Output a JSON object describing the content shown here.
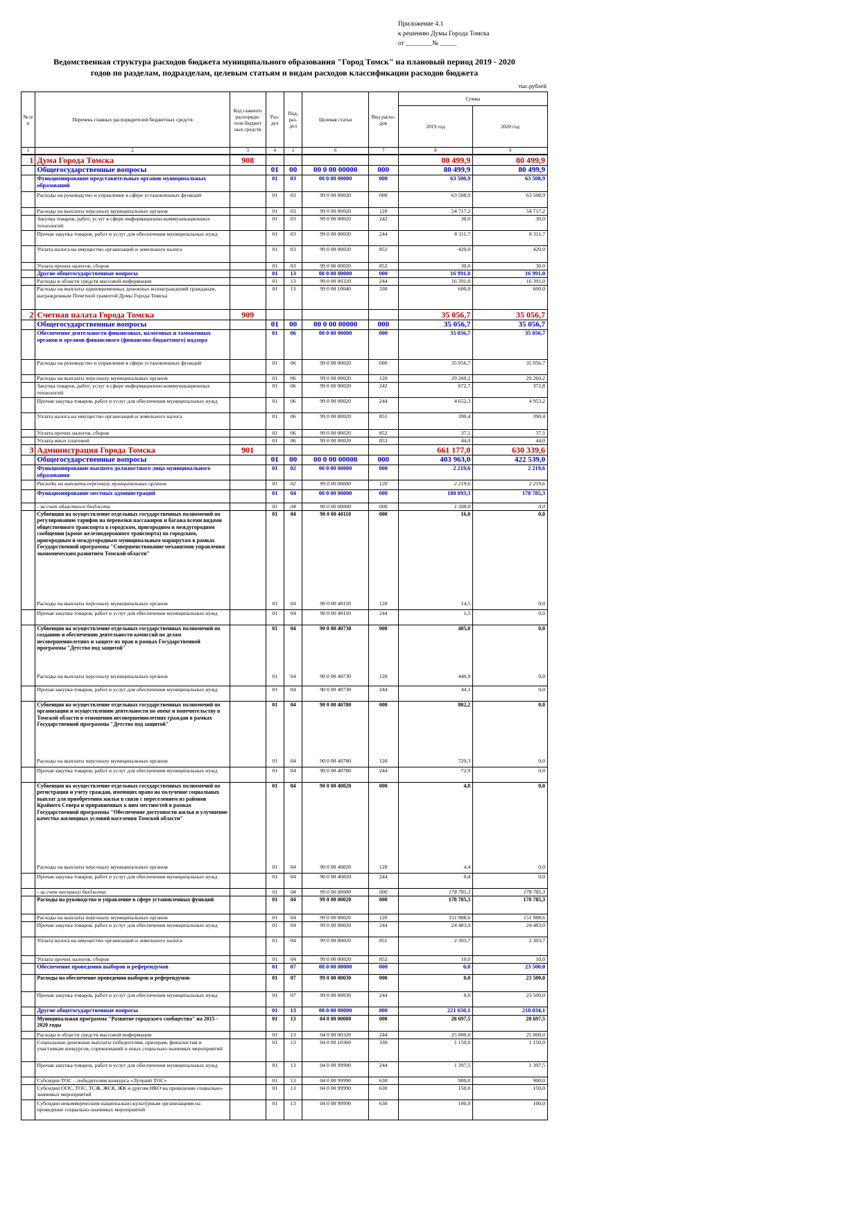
{
  "appendix": {
    "line1": "Приложение 4.1",
    "line2": "к решению Думы Города Томска",
    "line3": "от ________№ _____"
  },
  "title": {
    "line1": "Ведомственная структура расходов бюджета муниципального образования \"Город Томск\" на плановый период 2019 - 2020",
    "line2": "годов по разделам, подразделам, целевым статьям и видам расходов классификации расходов бюджета"
  },
  "units": "тыс.рублей",
  "header": {
    "num": "№ п/п",
    "name": "Перечень главных распорядителей бюджетных средств",
    "code": "Код главного распоряди-теля бюджет ных средств",
    "section": "Раз-дел",
    "subsection": "Под-раз-дел",
    "target": "Целевая статья",
    "kind": "Вид расхо-дов",
    "sum": "Сумма",
    "y2019": "2019 год",
    "y2020": "2020 год",
    "index": [
      "1",
      "2",
      "3",
      "4",
      "5",
      "6",
      "7",
      "8",
      "9"
    ]
  },
  "rows": [
    {
      "t": "lvl0",
      "h": 15,
      "num": "1",
      "name": "Дума Города Томска",
      "code": "908",
      "rz": "",
      "pr": "",
      "cs": "",
      "vr": "",
      "v2019": "80 499,9",
      "v2020": "80 499,9"
    },
    {
      "t": "lvl1",
      "h": 14,
      "num": "",
      "name": "Общегосударственные вопросы",
      "code": "",
      "rz": "01",
      "pr": "00",
      "cs": "00 0 00 00000",
      "vr": "000",
      "v2019": "80 499,9",
      "v2020": "80 499,9"
    },
    {
      "t": "lvl2",
      "h": 24,
      "num": "",
      "name": "Функционирование представительных органов муниципальных образований",
      "code": "",
      "rz": "01",
      "pr": "03",
      "cs": "00 0 00 00000",
      "vr": "000",
      "v2019": "63 508,9",
      "v2020": "63 508,9"
    },
    {
      "t": "item",
      "h": 23,
      "num": "",
      "name": "Расходы на руководство и управление в сфере установленных функций",
      "code": "",
      "rz": "01",
      "pr": "03",
      "cs": "99 0 00 00020",
      "vr": "000",
      "v2019": "63 508,9",
      "v2020": "63 508,9"
    },
    {
      "t": "flat",
      "h": 11,
      "num": "",
      "name": "Расходы на выплаты персоналу муниципальных органов",
      "code": "",
      "rz": "01",
      "pr": "03",
      "cs": "99 0 00 00020",
      "vr": "120",
      "v2019": "54 717,2",
      "v2020": "54 717,2"
    },
    {
      "t": "item",
      "h": 22,
      "num": "",
      "name": "Закупка товаров, работ, услуг в сфере информационно-коммуникационных технологий",
      "code": "",
      "rz": "01",
      "pr": "03",
      "cs": "99 0 00 00020",
      "vr": "242",
      "v2019": "30,0",
      "v2020": "30,0"
    },
    {
      "t": "item",
      "h": 22,
      "num": "",
      "name": "Прочая закупка товаров, работ и услуг для обеспечения муниципальных нужд",
      "code": "",
      "rz": "01",
      "pr": "03",
      "cs": "99 0 00 00020",
      "vr": "244",
      "v2019": "8 311,7",
      "v2020": "8 311,7"
    },
    {
      "t": "item",
      "h": 24,
      "num": "",
      "name": "Уплата налога на имущество организаций и земельного налога",
      "code": "",
      "rz": "01",
      "pr": "03",
      "cs": "99 0 00 00020",
      "vr": "851",
      "v2019": "420,0",
      "v2020": "420,0"
    },
    {
      "t": "item",
      "h": 11,
      "num": "",
      "name": "Уплата прочих налогов, сборов",
      "code": "",
      "rz": "01",
      "pr": "03",
      "cs": "99 0 00 00020",
      "vr": "852",
      "v2019": "30,0",
      "v2020": "30,0"
    },
    {
      "t": "lvl2",
      "h": 11,
      "num": "",
      "name": "Другие общегосударственные вопросы",
      "code": "",
      "rz": "01",
      "pr": "13",
      "cs": "00 0 00 00000",
      "vr": "000",
      "v2019": "16 991,0",
      "v2020": "16 991,0"
    },
    {
      "t": "item",
      "h": 11,
      "num": "",
      "name": "Расходы в области средств массовой информации",
      "code": "",
      "rz": "01",
      "pr": "13",
      "cs": "99 0 00 00320",
      "vr": "244",
      "v2019": "16 391,0",
      "v2020": "16 391,0"
    },
    {
      "t": "item",
      "h": 35,
      "num": "",
      "name": "Расходы на выплаты единовременных денежных вознаграждений гражданам, награжденным Почетной грамотой Думы Города Томска",
      "code": "",
      "rz": "01",
      "pr": "13",
      "cs": "99 0 00 10040",
      "vr": "330",
      "v2019": "600,0",
      "v2020": "600,0"
    },
    {
      "t": "lvl0",
      "h": 15,
      "num": "2",
      "name": "Счетная палата Города Томска",
      "code": "909",
      "rz": "",
      "pr": "",
      "cs": "",
      "vr": "",
      "v2019": "35 056,7",
      "v2020": "35 056,7"
    },
    {
      "t": "lvl1",
      "h": 14,
      "num": "",
      "name": "Общегосударственные вопросы",
      "code": "",
      "rz": "01",
      "pr": "00",
      "cs": "00 0 00 00000",
      "vr": "000",
      "v2019": "35 056,7",
      "v2020": "35 056,7"
    },
    {
      "t": "lvl2",
      "h": 43,
      "num": "",
      "name": "Обеспечение деятельности финансовых, налоговых и таможенных органов и органов финансового (финансово-бюджетного) надзора",
      "code": "",
      "rz": "01",
      "pr": "06",
      "cs": "00 0 00 00000",
      "vr": "000",
      "v2019": "35 056,7",
      "v2020": "35 056,7"
    },
    {
      "t": "item",
      "h": 22,
      "num": "",
      "name": "Расходы на руководство и управление в сфере установленных функций",
      "code": "",
      "rz": "01",
      "pr": "06",
      "cs": "99 0 00 00020",
      "vr": "000",
      "v2019": "35 056,7",
      "v2020": "35 056,7"
    },
    {
      "t": "flat",
      "h": 11,
      "num": "",
      "name": "Расходы на выплаты персоналу муниципальных органов",
      "code": "",
      "rz": "01",
      "pr": "06",
      "cs": "99 0 00 00020",
      "vr": "120",
      "v2019": "29 260,2",
      "v2020": "29 260,2"
    },
    {
      "t": "item",
      "h": 22,
      "num": "",
      "name": "Закупка товаров, работ, услуг в сфере информационно-коммуникационных технологий",
      "code": "",
      "rz": "01",
      "pr": "06",
      "cs": "99 0 00 00020",
      "vr": "242",
      "v2019": "672,7",
      "v2020": "371,8"
    },
    {
      "t": "item",
      "h": 22,
      "num": "",
      "name": "Прочая закупка товаров, работ и услуг для обеспечения муниципальных нужд",
      "code": "",
      "rz": "01",
      "pr": "06",
      "cs": "99 0 00 00020",
      "vr": "244",
      "v2019": "4 652,3",
      "v2020": "4 953,2"
    },
    {
      "t": "item",
      "h": 24,
      "num": "",
      "name": "Уплата налога на имущество организаций и земельного налога",
      "code": "",
      "rz": "01",
      "pr": "06",
      "cs": "99 0 00 00020",
      "vr": "851",
      "v2019": "390,4",
      "v2020": "390,4"
    },
    {
      "t": "item",
      "h": 11,
      "num": "",
      "name": "Уплата прочих налогов, сборов",
      "code": "",
      "rz": "01",
      "pr": "06",
      "cs": "99 0 00 00020",
      "vr": "852",
      "v2019": "37,1",
      "v2020": "37,1"
    },
    {
      "t": "item",
      "h": 11,
      "num": "",
      "name": "Уплата иных платежей",
      "code": "",
      "rz": "01",
      "pr": "06",
      "cs": "99 0 00 00020",
      "vr": "853",
      "v2019": "44,0",
      "v2020": "44,0"
    },
    {
      "t": "lvl0",
      "h": 15,
      "num": "3",
      "name": "Администрация Города Томска",
      "code": "901",
      "rz": "",
      "pr": "",
      "cs": "",
      "vr": "",
      "v2019": "661 177,0",
      "v2020": "630 339,6"
    },
    {
      "t": "lvl1",
      "h": 14,
      "num": "",
      "name": "Общегосударственные вопросы",
      "code": "",
      "rz": "01",
      "pr": "00",
      "cs": "00 0 00 00000",
      "vr": "000",
      "v2019": "403 963,0",
      "v2020": "422 539,0"
    },
    {
      "t": "lvl2",
      "h": 22,
      "num": "",
      "name": "Функционирование высшего должностного лица муниципального образования",
      "code": "",
      "rz": "01",
      "pr": "02",
      "cs": "00 0 00 00000",
      "vr": "000",
      "v2019": "2 219,6",
      "v2020": "2 219,6"
    },
    {
      "t": "itemit",
      "h": 14,
      "num": "",
      "name": "Расходы на выплаты персоналу муниципальных органов",
      "code": "",
      "rz": "01",
      "pr": "02",
      "cs": "99 0 00 00000",
      "vr": "120",
      "v2019": "2 219,6",
      "v2020": "2 219,6"
    },
    {
      "t": "lvl2",
      "h": 19,
      "num": "",
      "name": "Функционирование местных администраций",
      "code": "",
      "rz": "01",
      "pr": "04",
      "cs": "00 0 00 00000",
      "vr": "000",
      "v2019": "180 093,3",
      "v2020": "178 785,3"
    },
    {
      "t": "itemit",
      "h": 10,
      "num": "",
      "name": "- за счет областного бюджета",
      "code": "",
      "rz": "01",
      "pr": "04",
      "cs": "90 0 00 00000",
      "vr": "000",
      "v2019": "1 308,0",
      "v2020": "0,0"
    },
    {
      "t": "lvl3",
      "h": 130,
      "num": "",
      "name": "Субвенция на осуществление отдельных государственных полномочий по регулированию тарифов на перевозки пассажиров и багажа всеми видами общественного транспорта в городском, пригородном и междугородном сообщении (кроме железнодорожного транспорта) по городским, пригородным и междугородным муниципальным маршрутам в рамках Государственной программы \"Совершенствование механизмов управления экономическим развитием Томской области\"",
      "code": "",
      "rz": "01",
      "pr": "04",
      "cs": "90 0 00 40110",
      "vr": "000",
      "v2019": "16,0",
      "v2020": "0,0"
    },
    {
      "t": "item",
      "h": 13,
      "num": "",
      "name": "Расходы на выплаты персоналу муниципальных органов",
      "code": "",
      "rz": "01",
      "pr": "04",
      "cs": "90 0 00 40110",
      "vr": "120",
      "v2019": "14,5",
      "v2020": "0,0"
    },
    {
      "t": "item",
      "h": 22,
      "num": "",
      "name": "Прочая закупка товаров, работ и услуг для обеспечения муниципальных нужд",
      "code": "",
      "rz": "01",
      "pr": "04",
      "cs": "90 0 00 40110",
      "vr": "244",
      "v2019": "1,5",
      "v2020": "0,0"
    },
    {
      "t": "lvl3",
      "h": 70,
      "num": "",
      "name": "Субвенция на осуществление отдельных государственных полномочий по созданию и обеспечению деятельности комиссий по делам несовершеннолетних и защите их прав в рамках Государственной программы \"Детство под защитой\"",
      "code": "",
      "rz": "01",
      "pr": "04",
      "cs": "90 0 00 40730",
      "vr": "000",
      "v2019": "485,0",
      "v2020": "0,0"
    },
    {
      "t": "item",
      "h": 18,
      "num": "",
      "name": "Расходы на выплаты персоналу муниципальных органов",
      "code": "",
      "rz": "01",
      "pr": "04",
      "cs": "90 0 00 40730",
      "vr": "120",
      "v2019": "440,9",
      "v2020": "0,0"
    },
    {
      "t": "item",
      "h": 22,
      "num": "",
      "name": "Прочая закупка товаров, работ и услуг для обеспечения муниципальных нужд",
      "code": "",
      "rz": "01",
      "pr": "04",
      "cs": "90 0 00 40730",
      "vr": "244",
      "v2019": "44,1",
      "v2020": "0,0"
    },
    {
      "t": "lvl3",
      "h": 82,
      "num": "",
      "name": "Субвенция на осуществление отдельных государственных полномочий по организации и осуществлению деятельности по опеке и попечительству в Томской области в отношении несовершеннолетних граждан в рамках Государственной программы \"Детство под защитой\"",
      "code": "",
      "rz": "01",
      "pr": "04",
      "cs": "90 0 00 40780",
      "vr": "000",
      "v2019": "802,2",
      "v2020": "0,0"
    },
    {
      "t": "item",
      "h": 13,
      "num": "",
      "name": "Расходы на выплаты персоналу муниципальных органов",
      "code": "",
      "rz": "01",
      "pr": "04",
      "cs": "90 0 00 40780",
      "vr": "120",
      "v2019": "729,3",
      "v2020": "0,0"
    },
    {
      "t": "item",
      "h": 22,
      "num": "",
      "name": "Прочая закупка товаров, работ и услуг для обеспечения муниципальных нужд",
      "code": "",
      "rz": "01",
      "pr": "04",
      "cs": "90 0 00 40780",
      "vr": "244",
      "v2019": "72,9",
      "v2020": "0,0"
    },
    {
      "t": "lvl3",
      "h": 118,
      "num": "",
      "name": "Субвенция на осуществление отдельных государственных полномочий по регистрации и учету граждан, имеющих право на получение социальных выплат для приобретения жилья в связи с переселением из районов Крайнего Севера и приравненных к ним местностей в рамках Государственной программы \"Обеспечение доступности жилья и улучшение качества жилищных условий населения Томской области\"",
      "code": "",
      "rz": "01",
      "pr": "04",
      "cs": "90 0 00 40820",
      "vr": "000",
      "v2019": "4,8",
      "v2020": "0,0"
    },
    {
      "t": "item",
      "h": 13,
      "num": "",
      "name": "Расходы на выплаты персоналу муниципальных органов",
      "code": "",
      "rz": "01",
      "pr": "04",
      "cs": "90 0 00 40820",
      "vr": "120",
      "v2019": "4,4",
      "v2020": "0,0"
    },
    {
      "t": "item",
      "h": 22,
      "num": "",
      "name": "Прочая закупка товаров, работ и услуг для обеспечения муниципальных нужд",
      "code": "",
      "rz": "01",
      "pr": "04",
      "cs": "90 0 00 40820",
      "vr": "244",
      "v2019": "0,4",
      "v2020": "0,0"
    },
    {
      "t": "itemit",
      "h": 11,
      "num": "",
      "name": "- за счет местного бюджета",
      "code": "",
      "rz": "01",
      "pr": "04",
      "cs": "99 0 00 00000",
      "vr": "000",
      "v2019": "178 785,3",
      "v2020": "178 785,3"
    },
    {
      "t": "lvl3",
      "h": 26,
      "num": "",
      "name": "Расходы на руководство и управление в сфере установленных функций",
      "code": "",
      "rz": "01",
      "pr": "04",
      "cs": "99 0 00 00020",
      "vr": "000",
      "v2019": "178 785,3",
      "v2020": "178 785,3"
    },
    {
      "t": "item",
      "h": 11,
      "num": "",
      "name": "Расходы на выплаты персоналу муниципальных органов",
      "code": "",
      "rz": "01",
      "pr": "04",
      "cs": "99 0 00 00020",
      "vr": "120",
      "v2019": "151 988,6",
      "v2020": "151 988,6"
    },
    {
      "t": "item",
      "h": 22,
      "num": "",
      "name": "Прочая закупка товаров, работ и услуг для обеспечения муниципальных нужд",
      "code": "",
      "rz": "01",
      "pr": "04",
      "cs": "99 0 00 00020",
      "vr": "244",
      "v2019": "24 483,0",
      "v2020": "24 483,0"
    },
    {
      "t": "item",
      "h": 27,
      "num": "",
      "name": "Уплата налога на имущество организаций и земельного налога",
      "code": "",
      "rz": "01",
      "pr": "04",
      "cs": "99 0 00 00020",
      "vr": "851",
      "v2019": "2 303,7",
      "v2020": "2 303,7"
    },
    {
      "t": "item",
      "h": 11,
      "num": "",
      "name": "Уплата прочих налогов, сборов",
      "code": "",
      "rz": "01",
      "pr": "04",
      "cs": "99 0 00 00020",
      "vr": "852",
      "v2019": "10,0",
      "v2020": "10,0"
    },
    {
      "t": "lvl2",
      "h": 16,
      "num": "",
      "name": "Обеспечение проведения выборов и референдумов",
      "code": "",
      "rz": "01",
      "pr": "07",
      "cs": "00 0 00 00000",
      "vr": "000",
      "v2019": "0,0",
      "v2020": "23 500,0"
    },
    {
      "t": "lvl3",
      "h": 25,
      "num": "",
      "name": "Расходы на обеспечение проведения выборов и референдумов",
      "code": "",
      "rz": "01",
      "pr": "07",
      "cs": "99 0 00 00030",
      "vr": "000",
      "v2019": "0,0",
      "v2020": "23 500,0"
    },
    {
      "t": "item",
      "h": 22,
      "num": "",
      "name": "Прочая закупка товаров, работ и услуг для обеспечения муниципальных нужд",
      "code": "",
      "rz": "01",
      "pr": "07",
      "cs": "99 0 00 00030",
      "vr": "244",
      "v2019": "0,0",
      "v2020": "23 500,0"
    },
    {
      "t": "lvl2",
      "h": 12,
      "num": "",
      "name": "Другие общегосударственные вопросы",
      "code": "",
      "rz": "01",
      "pr": "13",
      "cs": "00 0 00 00000",
      "vr": "000",
      "v2019": "221 650,1",
      "v2020": "218 034,1"
    },
    {
      "t": "lvl3",
      "h": 23,
      "num": "",
      "name": "Муниципальная программа \"Развитие городского сообщества\" на 2015 - 2020 годы",
      "code": "",
      "rz": "01",
      "pr": "13",
      "cs": "04 0 00 00000",
      "vr": "000",
      "v2019": "28 697,5",
      "v2020": "28 697,5"
    },
    {
      "t": "item",
      "h": 11,
      "num": "",
      "name": "Расходы в области средств массовой информации",
      "code": "",
      "rz": "01",
      "pr": "13",
      "cs": "04 0 00 00320",
      "vr": "244",
      "v2019": "25 000,0",
      "v2020": "25 000,0"
    },
    {
      "t": "item",
      "h": 33,
      "num": "",
      "name": "Социальные денежные выплаты победителям, призерам, финалистам и участникам конкурсов, соревнований и иных социально-значимых мероприятий",
      "code": "",
      "rz": "01",
      "pr": "13",
      "cs": "04 0 00 10360",
      "vr": "330",
      "v2019": "1 150,0",
      "v2020": "1 150,0"
    },
    {
      "t": "item",
      "h": 22,
      "num": "",
      "name": "Прочая закупка товаров, работ и услуг для обеспечения муниципальных нужд",
      "code": "",
      "rz": "01",
      "pr": "13",
      "cs": "04 0 00 99990",
      "vr": "244",
      "v2019": "1 397,5",
      "v2020": "1 397,5"
    },
    {
      "t": "item",
      "h": 11,
      "num": "",
      "name": "Субсидии ТОС – победителям конкурса «Лучший ТОС»",
      "code": "",
      "rz": "01",
      "pr": "13",
      "cs": "04 0 00 99990",
      "vr": "630",
      "v2019": "900,0",
      "v2020": "900,0"
    },
    {
      "t": "item",
      "h": 22,
      "num": "",
      "name": "Субсидии ООС, ТОС, ТСЖ, ЖСК, ЖК и другим НКО на проведение социально-значимых мероприятий",
      "code": "",
      "rz": "01",
      "pr": "13",
      "cs": "04 0 00 99990",
      "vr": "630",
      "v2019": "150,0",
      "v2020": "150,0"
    },
    {
      "t": "item",
      "h": 29,
      "num": "",
      "name": "Субсидии некоммерческим национально-культурным организациям на проведение социально-значимых мероприятий",
      "code": "",
      "rz": "01",
      "pr": "13",
      "cs": "04 0 00 99990",
      "vr": "630",
      "v2019": "100,0",
      "v2020": "100,0"
    }
  ]
}
